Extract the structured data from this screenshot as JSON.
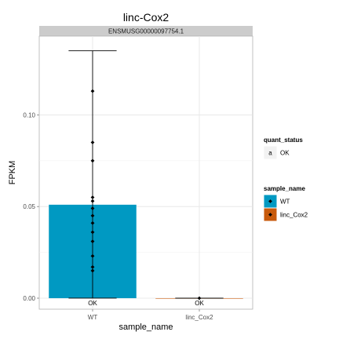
{
  "chart_data": {
    "type": "bar",
    "title": "linc-Cox2",
    "facet_label": "ENSMUSG00000097754.1",
    "xlabel": "sample_name",
    "ylabel": "FPKM",
    "categories": [
      "WT",
      "linc_Cox2"
    ],
    "values": [
      0.051,
      0.0
    ],
    "error_bars": [
      {
        "category": "WT",
        "low": 0.0,
        "high": 0.135
      },
      {
        "category": "linc_Cox2",
        "low": 0.0,
        "high": 0.0
      }
    ],
    "bar_labels": [
      "OK",
      "OK"
    ],
    "points": [
      {
        "category": "WT",
        "values": [
          0.113,
          0.085,
          0.075,
          0.055,
          0.053,
          0.049,
          0.045,
          0.041,
          0.036,
          0.031,
          0.023,
          0.017,
          0.015
        ]
      },
      {
        "category": "linc_Cox2",
        "values": [
          0.0
        ]
      }
    ],
    "ylim": [
      -0.006,
      0.143
    ],
    "yticks": [
      0.0,
      0.05,
      0.1
    ],
    "ytick_labels": [
      "0.00",
      "0.05",
      "0.10"
    ],
    "grid": true,
    "legend_placement": "right",
    "legends": [
      {
        "title": "quant_status",
        "entries": [
          {
            "key": "a",
            "label": "OK"
          }
        ]
      },
      {
        "title": "sample_name",
        "entries": [
          {
            "label": "WT",
            "color": "#0099c2"
          },
          {
            "label": "linc_Cox2",
            "color": "#c85a0c"
          }
        ]
      }
    ],
    "colors": {
      "WT": "#0099c2",
      "linc_Cox2": "#c85a0c",
      "panel_bg": "#ffffff",
      "strip_bg": "#cccccc",
      "grid": "#e5e5e5"
    }
  }
}
